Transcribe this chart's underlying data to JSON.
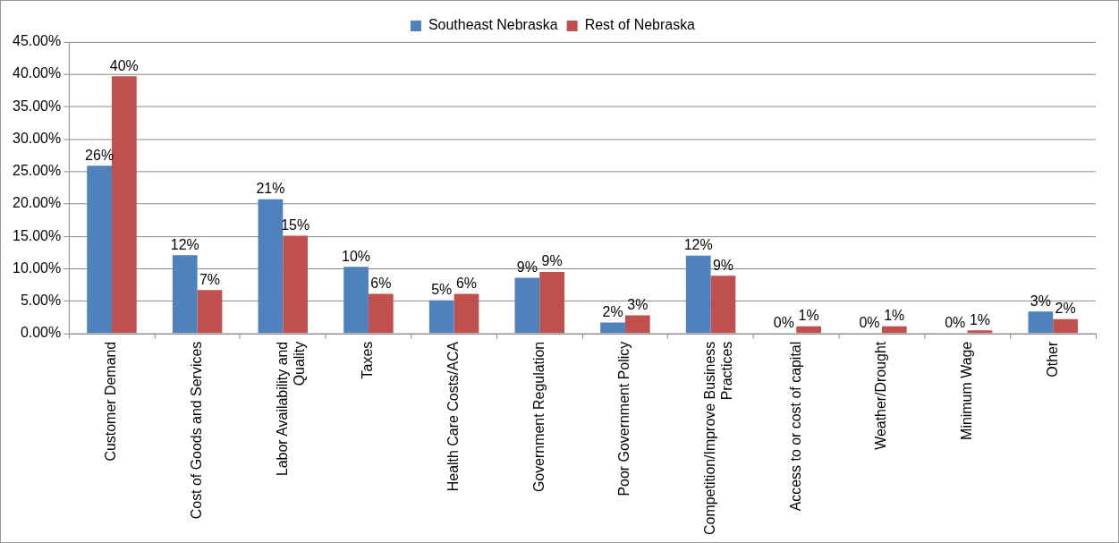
{
  "chart_data": {
    "type": "bar",
    "categories": [
      "Customer Demand",
      "Cost of Goods and Services",
      "Labor Availability and Quality",
      "Taxes",
      "Health Care Costs/ACA",
      "Government Regulation",
      "Poor Government Policy",
      "Competition/Improve Business Practices",
      "Access to or cost of capital",
      "Weather/Drought",
      "Minimum Wage",
      "Other"
    ],
    "series": [
      {
        "name": "Southeast Nebraska",
        "color": "#4f81bd",
        "values": [
          25.9,
          12.1,
          20.7,
          10.3,
          5.1,
          8.6,
          1.7,
          12.0,
          0,
          0,
          0,
          3.4
        ],
        "value_labels": [
          "26%",
          "12%",
          "21%",
          "10%",
          "5%",
          "9%",
          "2%",
          "12%",
          "0%",
          "0%",
          "0%",
          "3%"
        ]
      },
      {
        "name": "Rest of Nebraska",
        "color": "#c0504d",
        "values": [
          39.7,
          6.7,
          15.1,
          6.1,
          6.1,
          9.5,
          2.8,
          8.9,
          1.1,
          1.1,
          0.5,
          2.2
        ],
        "value_labels": [
          "40%",
          "7%",
          "15%",
          "6%",
          "6%",
          "9%",
          "3%",
          "9%",
          "1%",
          "1%",
          "1%",
          "2%"
        ]
      }
    ],
    "ylim": [
      0,
      45
    ],
    "yticks": [
      {
        "value": 0,
        "label": "0.00%"
      },
      {
        "value": 5,
        "label": "5.00%"
      },
      {
        "value": 10,
        "label": "10.00%"
      },
      {
        "value": 15,
        "label": "15.00%"
      },
      {
        "value": 20,
        "label": "20.00%"
      },
      {
        "value": 25,
        "label": "25.00%"
      },
      {
        "value": 30,
        "label": "30.00%"
      },
      {
        "value": 35,
        "label": "35.00%"
      },
      {
        "value": 40,
        "label": "40.00%"
      },
      {
        "value": 45,
        "label": "45.00%"
      }
    ],
    "grid": "y",
    "legend": "top"
  }
}
